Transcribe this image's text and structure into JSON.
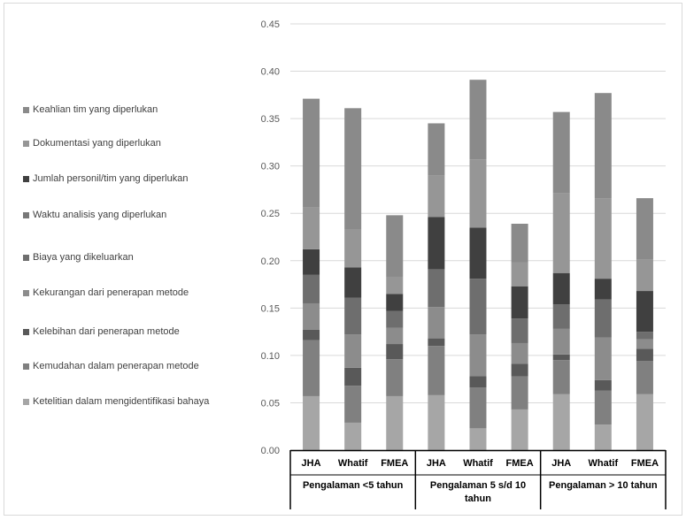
{
  "chart_data": {
    "type": "bar",
    "stacked": true,
    "title": "",
    "xlabel": "",
    "ylabel": "",
    "ylim": [
      0,
      0.45
    ],
    "yticks": [
      "0.00",
      "0.05",
      "0.10",
      "0.15",
      "0.20",
      "0.25",
      "0.30",
      "0.35",
      "0.40",
      "0.45"
    ],
    "grid": true,
    "legend_position": "left",
    "categories": [
      "JHA",
      "Whatif",
      "FMEA",
      "JHA",
      "Whatif",
      "FMEA",
      "JHA",
      "Whatif",
      "FMEA"
    ],
    "groups": [
      {
        "label": "Pengalaman <5 tahun",
        "categories": [
          "JHA",
          "Whatif",
          "FMEA"
        ]
      },
      {
        "label": "Pengalaman 5 s/d 10 tahun",
        "categories": [
          "JHA",
          "Whatif",
          "FMEA"
        ]
      },
      {
        "label": "Pengalaman > 10 tahun",
        "categories": [
          "JHA",
          "Whatif",
          "FMEA"
        ]
      }
    ],
    "series": [
      {
        "name": "Ketelitian dalam mengidentifikasi bahaya",
        "color": "#a6a6a6",
        "values": [
          0.057,
          0.029,
          0.057,
          0.058,
          0.023,
          0.043,
          0.059,
          0.027,
          0.059
        ]
      },
      {
        "name": "Kemudahan dalam penerapan metode",
        "color": "#808080",
        "values": [
          0.059,
          0.039,
          0.039,
          0.052,
          0.043,
          0.035,
          0.036,
          0.036,
          0.035
        ]
      },
      {
        "name": "Kelebihan dari penerapan metode",
        "color": "#595959",
        "values": [
          0.011,
          0.019,
          0.016,
          0.008,
          0.012,
          0.013,
          0.006,
          0.011,
          0.013
        ]
      },
      {
        "name": "Kekurangan dari penerapan metode",
        "color": "#8c8c8c",
        "values": [
          0.028,
          0.035,
          0.017,
          0.033,
          0.044,
          0.022,
          0.027,
          0.045,
          0.01
        ]
      },
      {
        "name": "Biaya yang dikeluarkan",
        "color": "#6e6e6e",
        "values": [
          0.03,
          0.039,
          0.018,
          0.04,
          0.059,
          0.026,
          0.026,
          0.04,
          0.008
        ]
      },
      {
        "name": "Waktu analisis yang diperlukan",
        "color": "#787878",
        "values": [
          0.0,
          0.0,
          0.0,
          0.0,
          0.0,
          0.0,
          0.0,
          0.0,
          0.0
        ]
      },
      {
        "name": "Jumlah personil/tim  yang diperlukan",
        "color": "#404040",
        "values": [
          0.027,
          0.032,
          0.018,
          0.055,
          0.054,
          0.034,
          0.033,
          0.022,
          0.043
        ]
      },
      {
        "name": "Dokumentasi yang diperlukan",
        "color": "#969696",
        "values": [
          0.044,
          0.04,
          0.018,
          0.044,
          0.072,
          0.025,
          0.084,
          0.085,
          0.033
        ]
      },
      {
        "name": "Keahlian tim yang diperlukan",
        "color": "#8a8a8a",
        "values": [
          0.115,
          0.128,
          0.065,
          0.055,
          0.084,
          0.041,
          0.086,
          0.111,
          0.065
        ]
      }
    ]
  }
}
